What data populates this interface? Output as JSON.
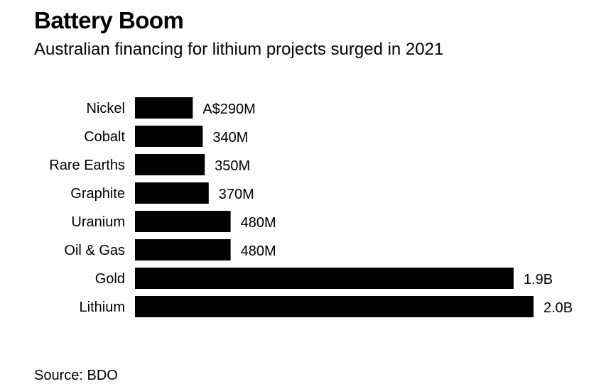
{
  "header": {
    "title": "Battery Boom",
    "subtitle": "Australian financing for lithium projects surged in 2021"
  },
  "footer": {
    "source": "Source: BDO"
  },
  "colors": {
    "bar": "#000000",
    "text": "#000000",
    "background": "#ffffff"
  },
  "chart_data": {
    "type": "bar",
    "orientation": "horizontal",
    "title": "Battery Boom",
    "subtitle": "Australian financing for lithium projects surged in 2021",
    "xlabel": "",
    "ylabel": "",
    "unit": "A$ millions",
    "grid": false,
    "legend": "none",
    "xlim": [
      0,
      2000
    ],
    "categories": [
      "Nickel",
      "Cobalt",
      "Rare Earths",
      "Graphite",
      "Uranium",
      "Oil & Gas",
      "Gold",
      "Lithium"
    ],
    "values": [
      290,
      340,
      350,
      370,
      480,
      480,
      1900,
      2000
    ],
    "data_labels": [
      "A$290M",
      "340M",
      "350M",
      "370M",
      "480M",
      "480M",
      "1.9B",
      "2.0B"
    ]
  }
}
